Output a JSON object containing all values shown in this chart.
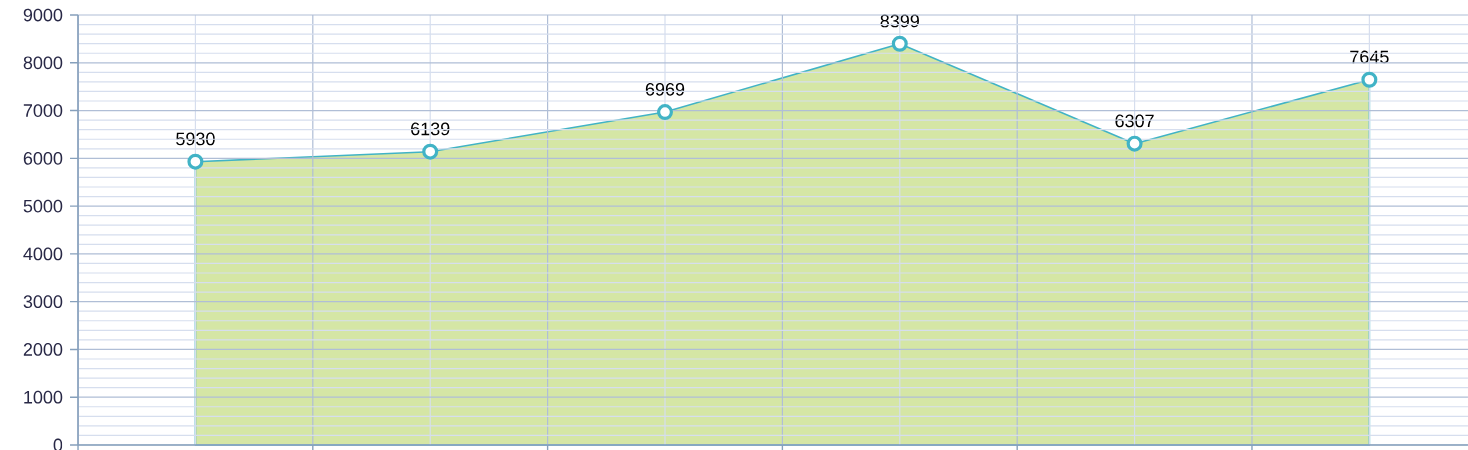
{
  "chart_data": {
    "type": "area",
    "categories": [
      null,
      null,
      null,
      null,
      null,
      null
    ],
    "values": [
      5930,
      6139,
      6969,
      8399,
      6307,
      7645
    ],
    "color": "#d5e6a5",
    "ylim": [
      0,
      9000
    ],
    "yticks": [
      0,
      1000,
      2000,
      3000,
      4000,
      5000,
      6000,
      7000,
      8000,
      9000
    ],
    "grid": true,
    "marker": "circle",
    "data_labels": true,
    "tick_labels": "y"
  }
}
